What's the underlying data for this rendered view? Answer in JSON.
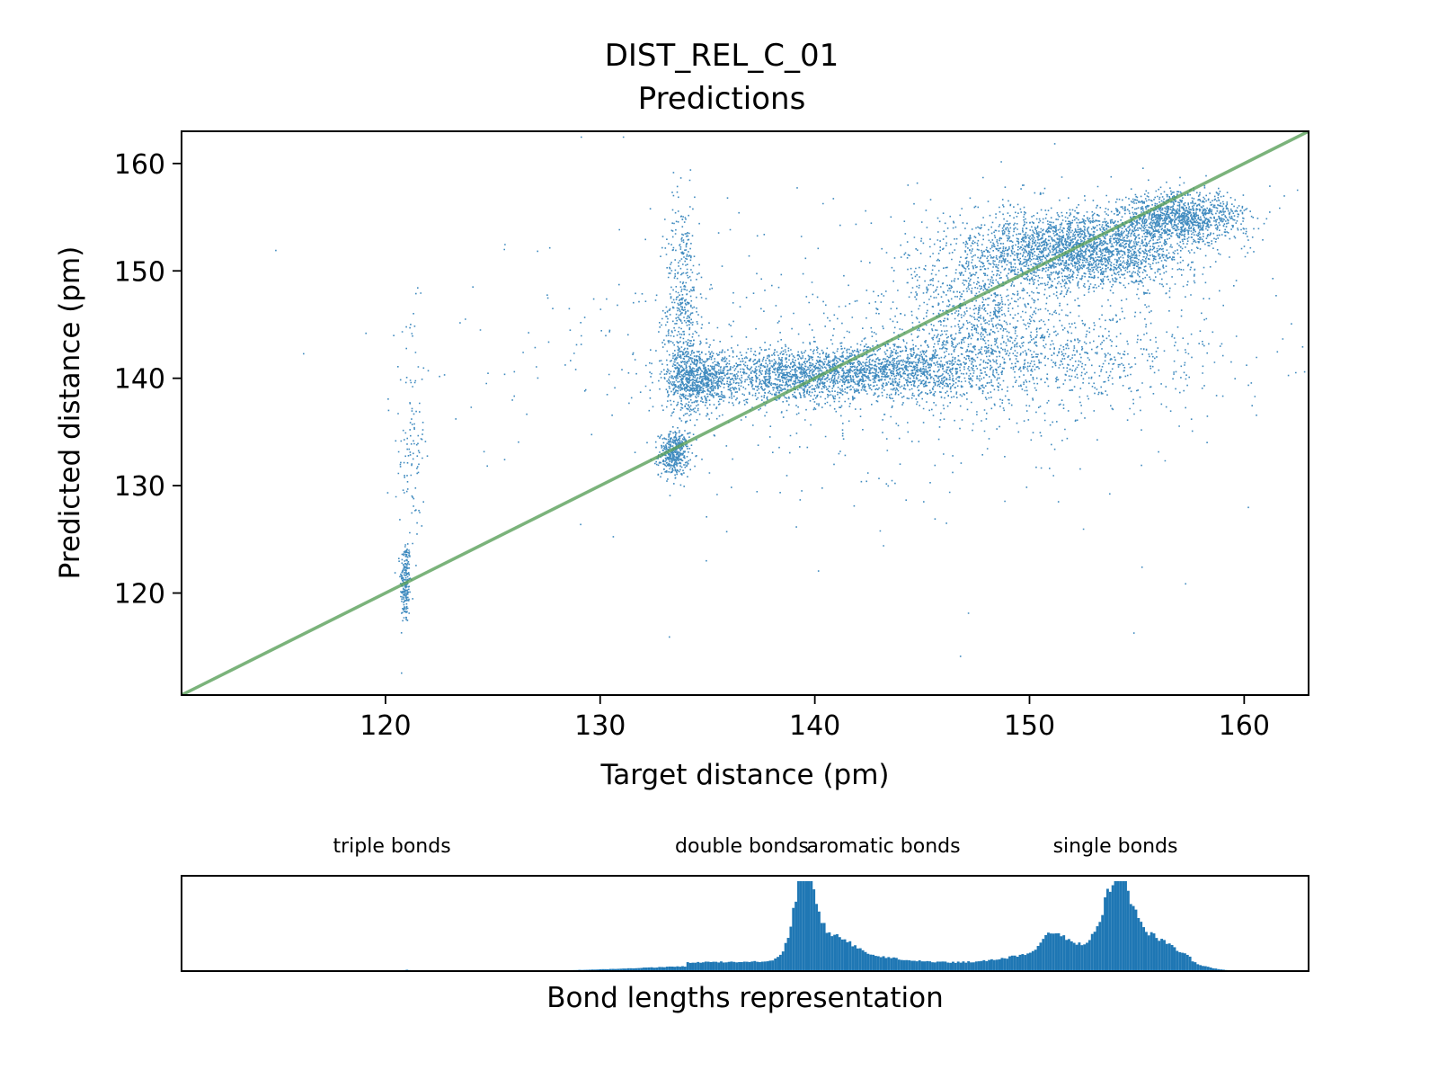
{
  "title": "DIST_REL_C_01",
  "subtitle": "Predictions",
  "chart_data": [
    {
      "type": "scatter",
      "title": "DIST_REL_C_01",
      "subtitle": "Predictions",
      "xlabel": "Target distance (pm)",
      "ylabel": "Predicted distance (pm)",
      "xlim": [
        110.5,
        163
      ],
      "ylim": [
        110.5,
        163
      ],
      "x_ticks": [
        "120",
        "130",
        "140",
        "150",
        "160"
      ],
      "y_ticks": [
        "120",
        "130",
        "140",
        "150",
        "160"
      ],
      "grid": false,
      "point_color": "#1f77b4",
      "reference_line": {
        "from": [
          110.5,
          110.5
        ],
        "to": [
          163,
          163
        ],
        "color": "#5aa05a"
      },
      "clusters": [
        {
          "x": 120.9,
          "y": 121,
          "sx": 0.12,
          "sy": 2.0,
          "n": 220
        },
        {
          "x": 121.2,
          "y": 134,
          "sx": 0.3,
          "sy": 6.0,
          "n": 120
        },
        {
          "x": 133.4,
          "y": 133,
          "sx": 0.35,
          "sy": 1.0,
          "n": 420
        },
        {
          "x": 133.8,
          "y": 146,
          "sx": 0.4,
          "sy": 5.5,
          "n": 500
        },
        {
          "x": 134.5,
          "y": 140,
          "sx": 0.7,
          "sy": 1.4,
          "n": 700
        },
        {
          "x": 139,
          "y": 140.3,
          "sx": 2.5,
          "sy": 1.2,
          "n": 1400
        },
        {
          "x": 144,
          "y": 140.8,
          "sx": 2.2,
          "sy": 1.3,
          "n": 1100
        },
        {
          "x": 147.5,
          "y": 147,
          "sx": 1.6,
          "sy": 4.0,
          "n": 900
        },
        {
          "x": 152.5,
          "y": 152,
          "sx": 2.4,
          "sy": 1.8,
          "n": 2400
        },
        {
          "x": 157,
          "y": 155,
          "sx": 1.5,
          "sy": 1.2,
          "n": 1200
        },
        {
          "x": 151.5,
          "y": 142,
          "sx": 3.5,
          "sy": 2.5,
          "n": 700
        },
        {
          "x": 143,
          "y": 142,
          "sx": 9.0,
          "sy": 7.0,
          "n": 700
        }
      ]
    },
    {
      "type": "bar",
      "title": "",
      "xlabel": "Bond lengths representation",
      "xlim": [
        110.5,
        163
      ],
      "bar_color": "#1f77b4",
      "bond_labels": [
        {
          "text": "triple bonds",
          "x": 120.3
        },
        {
          "text": "double bonds",
          "x": 136.6
        },
        {
          "text": "aromatic bonds",
          "x": 143.2
        },
        {
          "text": "single bonds",
          "x": 154
        }
      ],
      "peaks": [
        {
          "x": 121.0,
          "h": 0.015,
          "w": 0.15
        },
        {
          "x": 139.5,
          "h": 0.9,
          "w": 0.45
        },
        {
          "x": 140.6,
          "h": 0.25,
          "w": 1.0
        },
        {
          "x": 142.0,
          "h": 0.1,
          "w": 2.0
        },
        {
          "x": 136.0,
          "h": 0.06,
          "w": 4.0
        },
        {
          "x": 151.1,
          "h": 0.18,
          "w": 0.5
        },
        {
          "x": 152.0,
          "h": 0.2,
          "w": 2.2
        },
        {
          "x": 154.1,
          "h": 0.7,
          "w": 0.55
        },
        {
          "x": 155.3,
          "h": 0.32,
          "w": 1.5
        },
        {
          "x": 147.0,
          "h": 0.04,
          "w": 3.0
        }
      ]
    }
  ]
}
